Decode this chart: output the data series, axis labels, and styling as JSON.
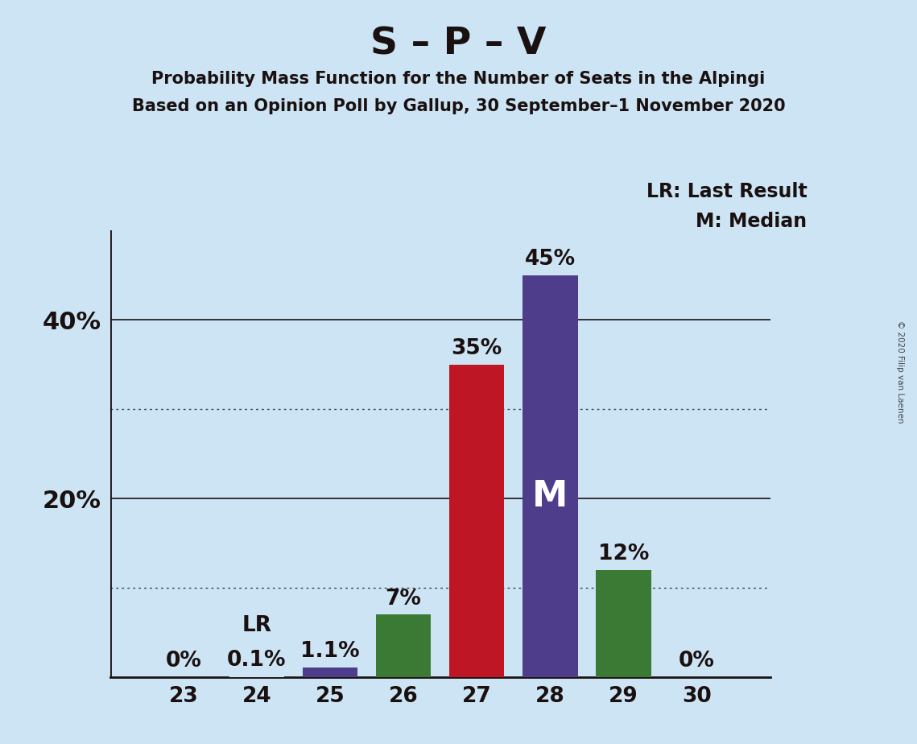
{
  "title": "S – P – V",
  "subtitle1": "Probability Mass Function for the Number of Seats in the Alpingi",
  "subtitle2": "Based on an Opinion Poll by Gallup, 30 September–1 November 2020",
  "copyright": "© 2020 Filip van Laenen",
  "seats": [
    23,
    24,
    25,
    26,
    27,
    28,
    29,
    30
  ],
  "values": [
    0.0,
    0.1,
    1.1,
    7.0,
    35.0,
    45.0,
    12.0,
    0.0
  ],
  "bar_colors": [
    "#cce4f4",
    "#cce4f4",
    "#4e3d8a",
    "#3a7a35",
    "#be1625",
    "#4e3d8a",
    "#3a7a35",
    "#cce4f4"
  ],
  "bar_labels": [
    "0%",
    "0.1%",
    "1.1%",
    "7%",
    "35%",
    "45%",
    "12%",
    "0%"
  ],
  "lr_seat": 24,
  "lr_label": "LR",
  "median_seat": 28,
  "median_label": "M",
  "background_color": "#cce4f4",
  "title_fontsize": 34,
  "subtitle_fontsize": 15,
  "bar_label_fontsize": 19,
  "tick_label_fontsize": 19,
  "ytick_label_fontsize": 22,
  "legend_fontsize": 17,
  "ylim": [
    0,
    50
  ],
  "yticks": [
    0,
    10,
    20,
    30,
    40
  ],
  "ytick_labels_show": [
    false,
    false,
    true,
    false,
    true
  ],
  "ytick_labels": [
    "",
    "",
    "20%",
    "",
    "40%"
  ],
  "solid_gridlines": [
    20,
    40
  ],
  "dotted_gridlines": [
    10,
    30
  ],
  "legend_text1": "LR: Last Result",
  "legend_text2": "M: Median"
}
